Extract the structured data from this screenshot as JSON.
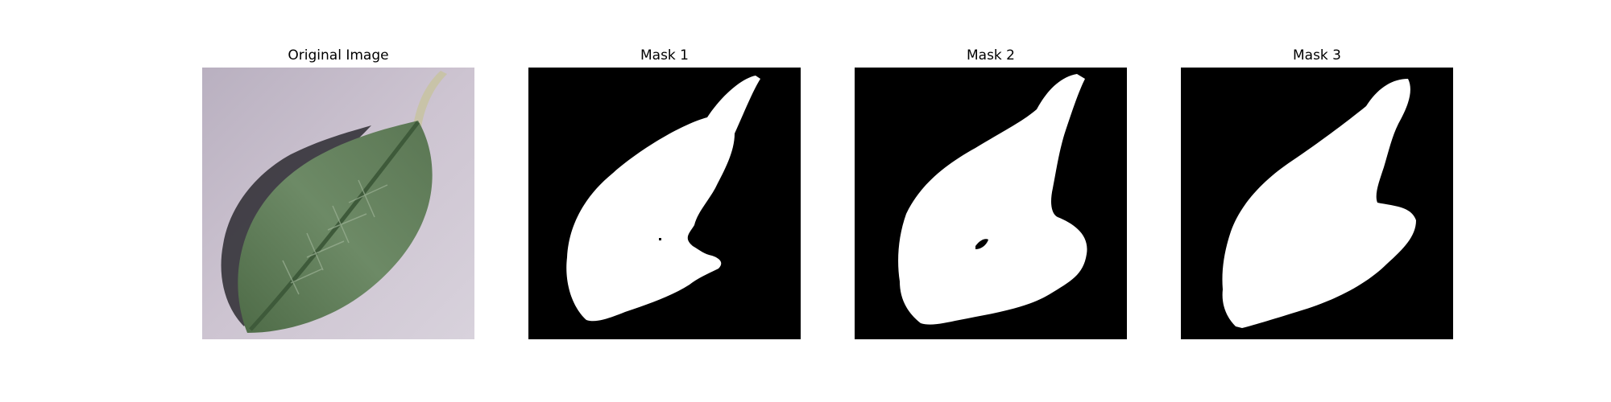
{
  "figure": {
    "panels": [
      {
        "title": "Original Image",
        "kind": "photo"
      },
      {
        "title": "Mask 1",
        "kind": "mask"
      },
      {
        "title": "Mask 2",
        "kind": "mask"
      },
      {
        "title": "Mask 3",
        "kind": "mask"
      }
    ]
  },
  "colors": {
    "photo_background": "#c9bfcd",
    "leaf_green": "#5f7a57",
    "leaf_dark": "#3e5a3a",
    "shadow": "#2c2a30",
    "stem": "#c8c3a8",
    "mask_background": "#000000",
    "mask_foreground": "#ffffff"
  }
}
